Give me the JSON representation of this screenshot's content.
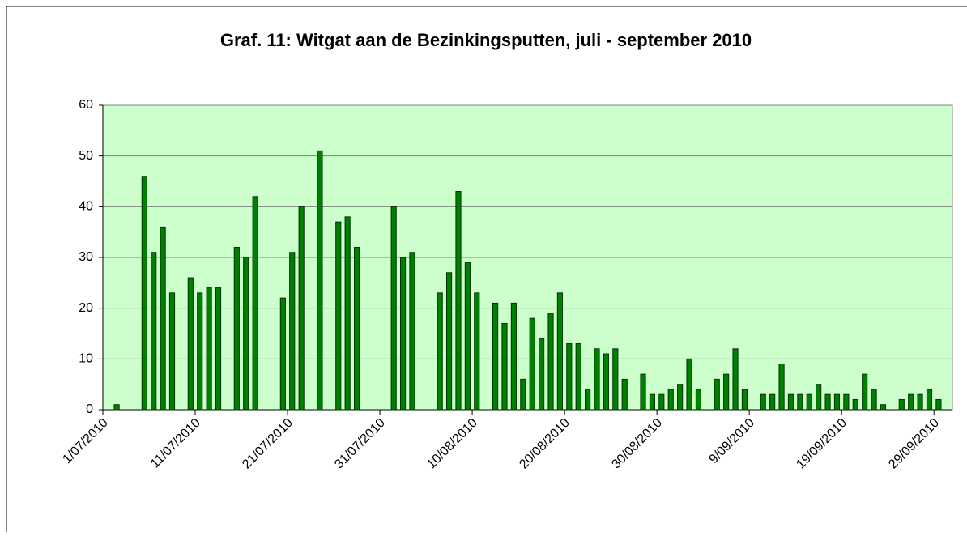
{
  "chart_data": {
    "type": "bar",
    "title": "Graf. 11: Witgat aan de Bezinkingsputten, juli - september 2010",
    "categories": [
      "1/07/2010",
      null,
      null,
      null,
      null,
      null,
      null,
      null,
      null,
      null,
      "11/07/2010",
      null,
      null,
      null,
      null,
      null,
      null,
      null,
      null,
      null,
      "21/07/2010",
      null,
      null,
      null,
      null,
      null,
      null,
      null,
      null,
      null,
      "31/07/2010",
      null,
      null,
      null,
      null,
      null,
      null,
      null,
      null,
      null,
      "10/08/2010",
      null,
      null,
      null,
      null,
      null,
      null,
      null,
      null,
      null,
      "20/08/2010",
      null,
      null,
      null,
      null,
      null,
      null,
      null,
      null,
      null,
      "30/08/2010",
      null,
      null,
      null,
      null,
      null,
      null,
      null,
      null,
      null,
      "9/09/2010",
      null,
      null,
      null,
      null,
      null,
      null,
      null,
      null,
      null,
      "19/09/2010",
      null,
      null,
      null,
      null,
      null,
      null,
      null,
      null,
      null,
      "29/09/2010",
      null
    ],
    "values": [
      null,
      1,
      null,
      null,
      46,
      31,
      36,
      23,
      null,
      26,
      23,
      24,
      24,
      null,
      32,
      30,
      42,
      null,
      null,
      22,
      31,
      40,
      null,
      51,
      null,
      37,
      38,
      32,
      null,
      null,
      null,
      40,
      30,
      31,
      null,
      null,
      23,
      27,
      43,
      29,
      23,
      null,
      21,
      17,
      21,
      6,
      18,
      14,
      19,
      23,
      13,
      13,
      4,
      12,
      11,
      12,
      6,
      null,
      7,
      3,
      3,
      4,
      5,
      10,
      4,
      null,
      6,
      7,
      12,
      4,
      null,
      3,
      3,
      9,
      3,
      3,
      3,
      5,
      3,
      3,
      3,
      2,
      7,
      4,
      1,
      null,
      2,
      3,
      3,
      4,
      2,
      null
    ],
    "color": "#008000",
    "ylim": [
      0,
      60
    ],
    "yticks": [
      0,
      10,
      20,
      30,
      40,
      50,
      60
    ],
    "grid": true
  }
}
